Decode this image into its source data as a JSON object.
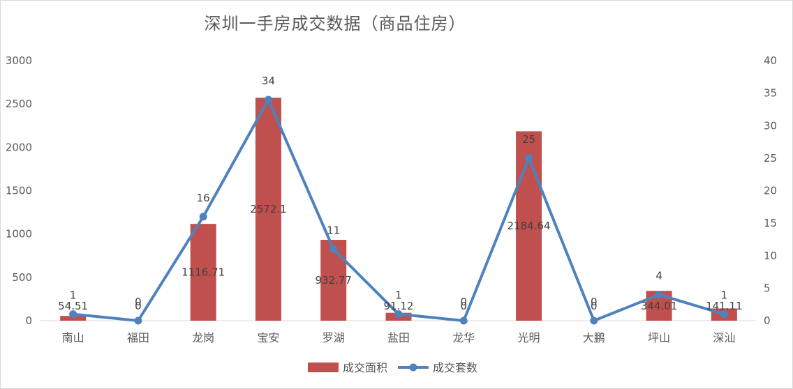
{
  "chart_data": {
    "type": "bar",
    "title": "深圳一手房成交数据（商品住房）",
    "categories": [
      "南山",
      "福田",
      "龙岗",
      "宝安",
      "罗湖",
      "盐田",
      "龙华",
      "光明",
      "大鹏",
      "坪山",
      "深汕"
    ],
    "series": [
      {
        "name": "成交面积",
        "type": "bar",
        "axis": "left",
        "color": "#c0504d",
        "values": [
          54.51,
          0,
          1116.71,
          2572.1,
          932.77,
          91.12,
          0,
          2184.64,
          0,
          344.01,
          141.11
        ],
        "labels": [
          "54.51",
          "0",
          "1116.71",
          "2572.1",
          "932.77",
          "91.12",
          "0",
          "2184.64",
          "0",
          "344.01",
          "141.11"
        ]
      },
      {
        "name": "成交套数",
        "type": "line",
        "axis": "right",
        "color": "#4f81bd",
        "values": [
          1,
          0,
          16,
          34,
          11,
          1,
          0,
          25,
          0,
          4,
          1
        ],
        "labels": [
          "1",
          "0",
          "16",
          "34",
          "11",
          "1",
          "0",
          "25",
          "0",
          "4",
          "1"
        ]
      }
    ],
    "ylim_left": [
      0,
      3000
    ],
    "yticks_left": [
      "0",
      "500",
      "1000",
      "1500",
      "2000",
      "2500",
      "3000"
    ],
    "ylim_right": [
      0,
      40
    ],
    "yticks_right": [
      "0",
      "5",
      "10",
      "15",
      "20",
      "25",
      "30",
      "35",
      "40"
    ],
    "grid": false,
    "legend_position": "bottom"
  }
}
